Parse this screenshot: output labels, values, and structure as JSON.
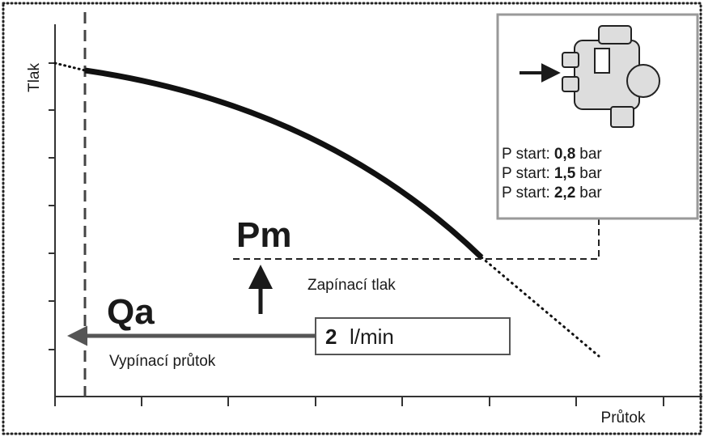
{
  "axes": {
    "y_label": "Tlak",
    "x_label": "Průtok"
  },
  "pm": {
    "title": "Pm",
    "label": "Zapínací tlak"
  },
  "qa": {
    "title": "Qa",
    "label": "Vypínací průtok",
    "value": "2",
    "unit": "l/min"
  },
  "inset": {
    "lines": [
      {
        "label": "P start:",
        "value": "0,8",
        "unit": "bar"
      },
      {
        "label": "P start:",
        "value": "1,5",
        "unit": "bar"
      },
      {
        "label": "P start:",
        "value": "2,2",
        "unit": "bar"
      }
    ]
  }
}
